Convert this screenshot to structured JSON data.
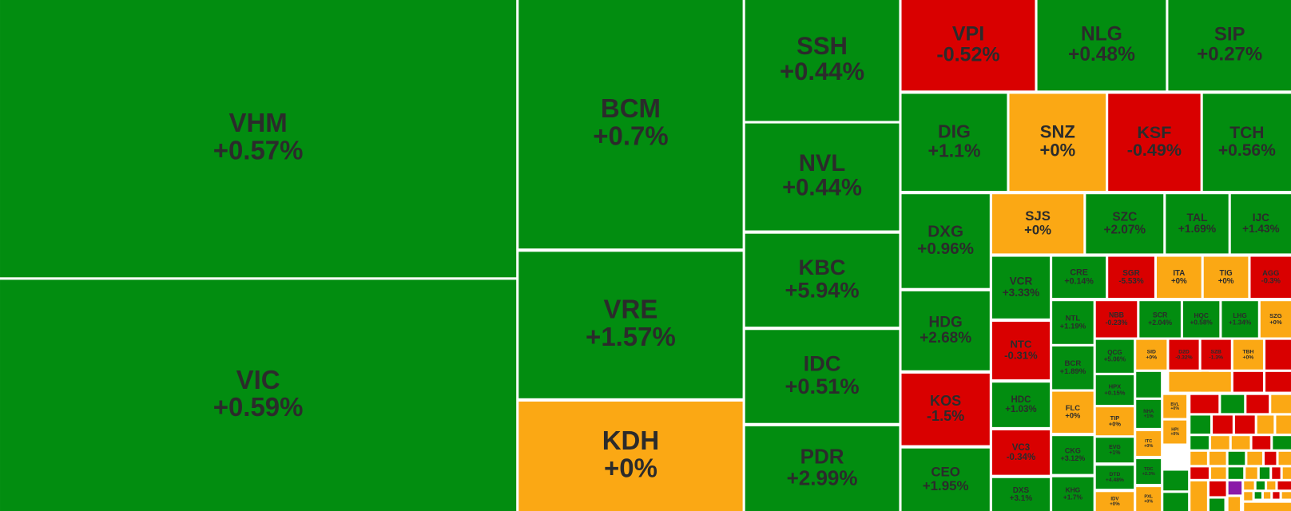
{
  "tiles": [
    {
      "ticker": "VHM",
      "change": "+0.57%",
      "color": "#028d10"
    },
    {
      "ticker": "VIC",
      "change": "+0.59%",
      "color": "#028d10"
    },
    {
      "ticker": "BCM",
      "change": "+0.7%",
      "color": "#028d10"
    },
    {
      "ticker": "VRE",
      "change": "+1.57%",
      "color": "#028d10"
    },
    {
      "ticker": "KDH",
      "change": "+0%",
      "color": "#fba814"
    },
    {
      "ticker": "SSH",
      "change": "+0.44%",
      "color": "#028d10"
    },
    {
      "ticker": "NVL",
      "change": "+0.44%",
      "color": "#028d10"
    },
    {
      "ticker": "KBC",
      "change": "+5.94%",
      "color": "#028d10"
    },
    {
      "ticker": "IDC",
      "change": "+0.51%",
      "color": "#028d10"
    },
    {
      "ticker": "PDR",
      "change": "+2.99%",
      "color": "#028d10"
    },
    {
      "ticker": "VPI",
      "change": "-0.52%",
      "color": "#d90000"
    },
    {
      "ticker": "NLG",
      "change": "+0.48%",
      "color": "#028d10"
    },
    {
      "ticker": "SIP",
      "change": "+0.27%",
      "color": "#028d10"
    },
    {
      "ticker": "DIG",
      "change": "+1.1%",
      "color": "#028d10"
    },
    {
      "ticker": "SNZ",
      "change": "+0%",
      "color": "#fba814"
    },
    {
      "ticker": "KSF",
      "change": "-0.49%",
      "color": "#d90000"
    },
    {
      "ticker": "TCH",
      "change": "+0.56%",
      "color": "#028d10"
    },
    {
      "ticker": "DXG",
      "change": "+0.96%",
      "color": "#028d10"
    },
    {
      "ticker": "HDG",
      "change": "+2.68%",
      "color": "#028d10"
    },
    {
      "ticker": "KOS",
      "change": "-1.5%",
      "color": "#d90000"
    },
    {
      "ticker": "CEO",
      "change": "+1.95%",
      "color": "#028d10"
    },
    {
      "ticker": "SJS",
      "change": "+0%",
      "color": "#fba814"
    },
    {
      "ticker": "SZC",
      "change": "+2.07%",
      "color": "#028d10"
    },
    {
      "ticker": "TAL",
      "change": "+1.69%",
      "color": "#028d10"
    },
    {
      "ticker": "IJC",
      "change": "+1.43%",
      "color": "#028d10"
    },
    {
      "ticker": "VCR",
      "change": "+3.33%",
      "color": "#028d10"
    },
    {
      "ticker": "NTC",
      "change": "-0.31%",
      "color": "#d90000"
    },
    {
      "ticker": "HDC",
      "change": "+1.03%",
      "color": "#028d10"
    },
    {
      "ticker": "VC3",
      "change": "-0.34%",
      "color": "#d90000"
    },
    {
      "ticker": "DXS",
      "change": "+3.1%",
      "color": "#028d10"
    },
    {
      "ticker": "CRE",
      "change": "+0.14%",
      "color": "#028d10"
    },
    {
      "ticker": "SGR",
      "change": "-5.53%",
      "color": "#d90000"
    },
    {
      "ticker": "ITA",
      "change": "+0%",
      "color": "#fba814"
    },
    {
      "ticker": "TIG",
      "change": "+0%",
      "color": "#fba814"
    },
    {
      "ticker": "AGG",
      "change": "-0.3%",
      "color": "#d90000"
    },
    {
      "ticker": "NTL",
      "change": "+1.19%",
      "color": "#028d10"
    },
    {
      "ticker": "NBB",
      "change": "-0.23%",
      "color": "#d90000"
    },
    {
      "ticker": "SCR",
      "change": "+2.04%",
      "color": "#028d10"
    },
    {
      "ticker": "HQC",
      "change": "+0.58%",
      "color": "#028d10"
    },
    {
      "ticker": "LHG",
      "change": "+1.34%",
      "color": "#028d10"
    },
    {
      "ticker": "SZG",
      "change": "+0%",
      "color": "#fba814"
    },
    {
      "ticker": "BCR",
      "change": "+1.89%",
      "color": "#028d10"
    },
    {
      "ticker": "QCG",
      "change": "+5.06%",
      "color": "#028d10"
    },
    {
      "ticker": "SID",
      "change": "+0%",
      "color": "#fba814"
    },
    {
      "ticker": "D2D",
      "change": "-0.32%",
      "color": "#d90000"
    },
    {
      "ticker": "SZB",
      "change": "-1.3%",
      "color": "#d90000"
    },
    {
      "ticker": "TBH",
      "change": "+0%",
      "color": "#fba814"
    },
    {
      "ticker": "FLC",
      "change": "+0%",
      "color": "#fba814"
    },
    {
      "ticker": "CKG",
      "change": "+3.12%",
      "color": "#028d10"
    },
    {
      "ticker": "KHG",
      "change": "+1.7%",
      "color": "#028d10"
    },
    {
      "ticker": "HPX",
      "change": "+0.15%",
      "color": "#028d10"
    },
    {
      "ticker": "TIP",
      "change": "+0%",
      "color": "#fba814"
    },
    {
      "ticker": "EVG",
      "change": "+1%",
      "color": "#028d10"
    },
    {
      "ticker": "DTD",
      "change": "+4.48%",
      "color": "#028d10"
    },
    {
      "ticker": "IDV",
      "change": "+0%",
      "color": "#fba814"
    },
    {
      "ticker": "NHA",
      "change": "+1%",
      "color": "#028d10"
    },
    {
      "ticker": "ITC",
      "change": "+0%",
      "color": "#fba814"
    },
    {
      "ticker": "TDC",
      "change": "+2.3%",
      "color": "#028d10"
    },
    {
      "ticker": "PXL",
      "change": "+0%",
      "color": "#fba814"
    },
    {
      "ticker": "BVL",
      "change": "+0%",
      "color": "#fba814"
    },
    {
      "ticker": "HPI",
      "change": "+0%",
      "color": "#fba814"
    }
  ]
}
